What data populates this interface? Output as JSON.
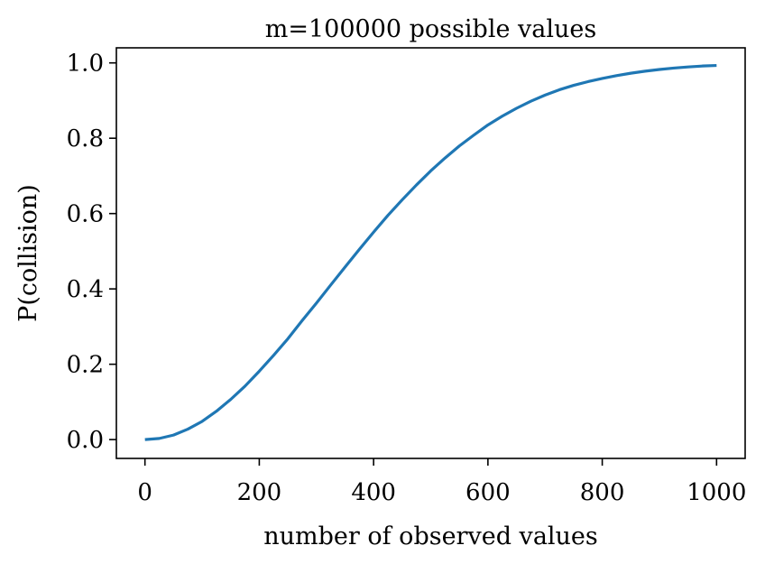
{
  "chart_data": {
    "type": "line",
    "title": "m=100000 possible values",
    "xlabel": "number of observed values",
    "ylabel": "P(collision)",
    "xlim": [
      -50,
      1050
    ],
    "ylim": [
      -0.05,
      1.04
    ],
    "xticks": [
      0,
      200,
      400,
      600,
      800,
      1000
    ],
    "xtick_labels": [
      "0",
      "200",
      "400",
      "600",
      "800",
      "1000"
    ],
    "yticks": [
      0.0,
      0.2,
      0.4,
      0.6,
      0.8,
      1.0
    ],
    "ytick_labels": [
      "0.0",
      "0.2",
      "0.4",
      "0.6",
      "0.8",
      "1.0"
    ],
    "grid": false,
    "series": [
      {
        "color": "#1f77b4",
        "x": [
          0,
          25,
          50,
          75,
          100,
          125,
          150,
          175,
          200,
          225,
          250,
          275,
          300,
          325,
          350,
          375,
          400,
          425,
          450,
          475,
          500,
          525,
          550,
          575,
          600,
          625,
          650,
          675,
          700,
          725,
          750,
          775,
          800,
          825,
          850,
          875,
          900,
          925,
          950,
          975,
          1000
        ],
        "y": [
          0.0,
          0.003,
          0.012,
          0.0277,
          0.0483,
          0.0752,
          0.1066,
          0.1418,
          0.1815,
          0.2236,
          0.2676,
          0.3158,
          0.3624,
          0.4104,
          0.4579,
          0.505,
          0.5508,
          0.5951,
          0.6365,
          0.676,
          0.7134,
          0.7475,
          0.7795,
          0.8079,
          0.8353,
          0.8585,
          0.8795,
          0.8982,
          0.9145,
          0.9287,
          0.9404,
          0.9502,
          0.9586,
          0.9661,
          0.9726,
          0.978,
          0.9825,
          0.9862,
          0.9892,
          0.9917,
          0.9932
        ]
      }
    ]
  }
}
